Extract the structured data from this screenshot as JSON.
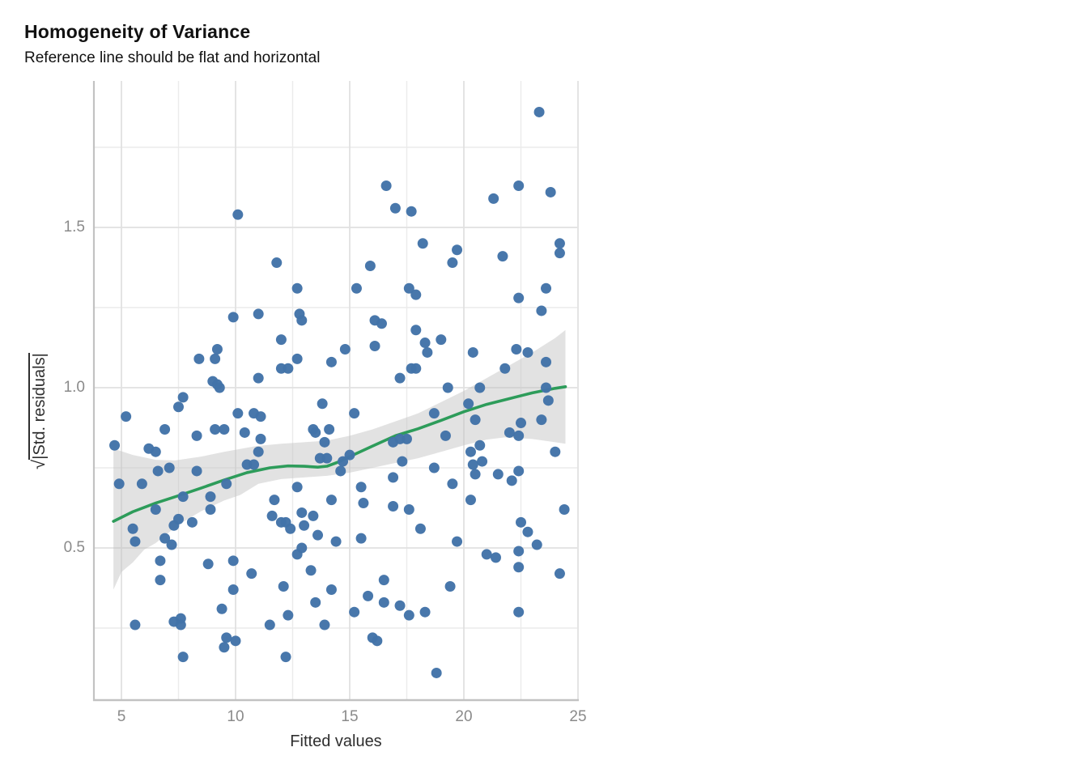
{
  "header": {
    "title": "Homogeneity of Variance",
    "subtitle": "Reference line should be flat and horizontal"
  },
  "axes": {
    "x": {
      "label": "Fitted values",
      "tick_labels": [
        "5",
        "10",
        "15",
        "20",
        "25"
      ]
    },
    "y": {
      "label": "√|Std. residuals|",
      "sqrt_symbol": "√",
      "label_text": "|Std. residuals|",
      "tick_labels": [
        "0.5",
        "1.0",
        "1.5"
      ]
    }
  },
  "colors": {
    "point": "#4273a8",
    "smooth_line": "#2d9c5a",
    "ribbon": "#bfbfbf",
    "grid_major": "#e0e0e0",
    "grid_minor": "#ebebeb",
    "axis_line": "#c2c2c2",
    "tick_text": "#8a8a8a",
    "axis_title_text": "#2f2f2f",
    "background": "#ffffff"
  },
  "chart_data": {
    "type": "scatter",
    "title": "Homogeneity of Variance",
    "subtitle": "Reference line should be flat and horizontal",
    "xlabel": "Fitted values",
    "ylabel": "sqrt(|Std. residuals|)",
    "xlim": [
      3.8,
      25.0
    ],
    "ylim": [
      0.02,
      1.96
    ],
    "x_ticks": [
      5,
      10,
      15,
      20,
      25
    ],
    "x_minor_ticks": [
      7.5,
      12.5,
      17.5,
      22.5
    ],
    "y_ticks": [
      0.5,
      1.0,
      1.5
    ],
    "y_minor_ticks": [
      0.25,
      0.75,
      1.25,
      1.75
    ],
    "grid": "on",
    "legend": "none",
    "points": [
      [
        10.1,
        1.54
      ],
      [
        16.6,
        1.63
      ],
      [
        17.0,
        1.56
      ],
      [
        17.7,
        1.55
      ],
      [
        11.8,
        1.39
      ],
      [
        15.9,
        1.38
      ],
      [
        12.7,
        1.31
      ],
      [
        15.3,
        1.31
      ],
      [
        17.6,
        1.31
      ],
      [
        17.9,
        1.29
      ],
      [
        23.3,
        1.86
      ],
      [
        22.4,
        1.63
      ],
      [
        21.3,
        1.59
      ],
      [
        23.8,
        1.61
      ],
      [
        18.2,
        1.45
      ],
      [
        19.7,
        1.43
      ],
      [
        19.5,
        1.39
      ],
      [
        21.7,
        1.41
      ],
      [
        24.2,
        1.45
      ],
      [
        24.2,
        1.42
      ],
      [
        23.6,
        1.31
      ],
      [
        9.9,
        1.22
      ],
      [
        11.0,
        1.23
      ],
      [
        9.2,
        1.12
      ],
      [
        8.4,
        1.09
      ],
      [
        9.1,
        1.09
      ],
      [
        9.0,
        1.02
      ],
      [
        9.2,
        1.01
      ],
      [
        9.3,
        1.0
      ],
      [
        11.0,
        1.03
      ],
      [
        7.7,
        0.97
      ],
      [
        7.5,
        0.94
      ],
      [
        5.2,
        0.91
      ],
      [
        10.1,
        0.92
      ],
      [
        10.8,
        0.92
      ],
      [
        6.9,
        0.87
      ],
      [
        9.1,
        0.87
      ],
      [
        9.5,
        0.87
      ],
      [
        10.4,
        0.86
      ],
      [
        8.3,
        0.85
      ],
      [
        4.7,
        0.82
      ],
      [
        6.2,
        0.81
      ],
      [
        6.5,
        0.8
      ],
      [
        11.0,
        0.8
      ],
      [
        6.6,
        0.74
      ],
      [
        7.1,
        0.75
      ],
      [
        8.3,
        0.74
      ],
      [
        10.5,
        0.76
      ],
      [
        10.8,
        0.76
      ],
      [
        4.9,
        0.7
      ],
      [
        5.9,
        0.7
      ],
      [
        9.6,
        0.7
      ],
      [
        12.8,
        1.23
      ],
      [
        12.9,
        1.21
      ],
      [
        16.1,
        1.21
      ],
      [
        16.4,
        1.2
      ],
      [
        17.9,
        1.18
      ],
      [
        12.0,
        1.15
      ],
      [
        14.8,
        1.12
      ],
      [
        16.1,
        1.13
      ],
      [
        18.3,
        1.14
      ],
      [
        12.7,
        1.09
      ],
      [
        14.2,
        1.08
      ],
      [
        12.0,
        1.06
      ],
      [
        12.3,
        1.06
      ],
      [
        17.2,
        1.03
      ],
      [
        17.7,
        1.06
      ],
      [
        17.9,
        1.06
      ],
      [
        13.8,
        0.95
      ],
      [
        11.1,
        0.91
      ],
      [
        15.2,
        0.92
      ],
      [
        13.4,
        0.87
      ],
      [
        13.5,
        0.86
      ],
      [
        14.1,
        0.87
      ],
      [
        11.1,
        0.84
      ],
      [
        13.9,
        0.83
      ],
      [
        16.9,
        0.83
      ],
      [
        17.2,
        0.84
      ],
      [
        17.5,
        0.84
      ],
      [
        13.7,
        0.78
      ],
      [
        14.0,
        0.78
      ],
      [
        14.7,
        0.77
      ],
      [
        15.0,
        0.79
      ],
      [
        17.3,
        0.77
      ],
      [
        14.6,
        0.74
      ],
      [
        16.9,
        0.72
      ],
      [
        12.7,
        0.69
      ],
      [
        15.5,
        0.69
      ],
      [
        22.4,
        1.28
      ],
      [
        23.4,
        1.24
      ],
      [
        19.0,
        1.15
      ],
      [
        18.4,
        1.11
      ],
      [
        20.4,
        1.11
      ],
      [
        22.3,
        1.12
      ],
      [
        22.8,
        1.11
      ],
      [
        21.8,
        1.06
      ],
      [
        23.6,
        1.08
      ],
      [
        19.3,
        1.0
      ],
      [
        20.7,
        1.0
      ],
      [
        23.6,
        1.0
      ],
      [
        20.2,
        0.95
      ],
      [
        23.7,
        0.96
      ],
      [
        18.7,
        0.92
      ],
      [
        20.5,
        0.9
      ],
      [
        22.5,
        0.89
      ],
      [
        23.4,
        0.9
      ],
      [
        22.0,
        0.86
      ],
      [
        22.4,
        0.85
      ],
      [
        19.2,
        0.85
      ],
      [
        20.7,
        0.82
      ],
      [
        20.3,
        0.8
      ],
      [
        24.0,
        0.8
      ],
      [
        20.4,
        0.76
      ],
      [
        20.8,
        0.77
      ],
      [
        18.7,
        0.75
      ],
      [
        20.5,
        0.73
      ],
      [
        21.5,
        0.73
      ],
      [
        22.4,
        0.74
      ],
      [
        22.1,
        0.71
      ],
      [
        19.5,
        0.7
      ],
      [
        5.5,
        0.56
      ],
      [
        5.6,
        0.52
      ],
      [
        6.5,
        0.62
      ],
      [
        7.7,
        0.66
      ],
      [
        8.9,
        0.66
      ],
      [
        8.9,
        0.62
      ],
      [
        7.5,
        0.59
      ],
      [
        7.3,
        0.57
      ],
      [
        8.1,
        0.58
      ],
      [
        6.9,
        0.53
      ],
      [
        7.2,
        0.51
      ],
      [
        6.7,
        0.46
      ],
      [
        8.8,
        0.45
      ],
      [
        9.9,
        0.46
      ],
      [
        10.7,
        0.42
      ],
      [
        6.7,
        0.4
      ],
      [
        9.9,
        0.37
      ],
      [
        9.4,
        0.31
      ],
      [
        5.6,
        0.26
      ],
      [
        7.3,
        0.27
      ],
      [
        7.6,
        0.28
      ],
      [
        7.6,
        0.26
      ],
      [
        9.6,
        0.22
      ],
      [
        9.5,
        0.19
      ],
      [
        10.0,
        0.21
      ],
      [
        7.7,
        0.16
      ],
      [
        11.7,
        0.65
      ],
      [
        14.2,
        0.65
      ],
      [
        15.6,
        0.64
      ],
      [
        16.9,
        0.63
      ],
      [
        17.6,
        0.62
      ],
      [
        11.6,
        0.6
      ],
      [
        12.0,
        0.58
      ],
      [
        12.2,
        0.58
      ],
      [
        12.4,
        0.56
      ],
      [
        12.9,
        0.61
      ],
      [
        13.4,
        0.6
      ],
      [
        13.0,
        0.57
      ],
      [
        13.6,
        0.54
      ],
      [
        14.4,
        0.52
      ],
      [
        15.5,
        0.53
      ],
      [
        18.1,
        0.56
      ],
      [
        12.9,
        0.5
      ],
      [
        12.7,
        0.48
      ],
      [
        13.3,
        0.43
      ],
      [
        12.1,
        0.38
      ],
      [
        14.2,
        0.37
      ],
      [
        13.5,
        0.33
      ],
      [
        16.5,
        0.4
      ],
      [
        15.8,
        0.35
      ],
      [
        16.5,
        0.33
      ],
      [
        17.2,
        0.32
      ],
      [
        17.6,
        0.29
      ],
      [
        15.2,
        0.3
      ],
      [
        12.3,
        0.29
      ],
      [
        11.5,
        0.26
      ],
      [
        13.9,
        0.26
      ],
      [
        16.0,
        0.22
      ],
      [
        16.2,
        0.21
      ],
      [
        12.2,
        0.16
      ],
      [
        20.3,
        0.65
      ],
      [
        24.4,
        0.62
      ],
      [
        22.5,
        0.58
      ],
      [
        22.8,
        0.55
      ],
      [
        19.7,
        0.52
      ],
      [
        23.2,
        0.51
      ],
      [
        22.4,
        0.49
      ],
      [
        21.0,
        0.48
      ],
      [
        21.4,
        0.47
      ],
      [
        22.4,
        0.44
      ],
      [
        24.2,
        0.42
      ],
      [
        19.4,
        0.38
      ],
      [
        18.3,
        0.3
      ],
      [
        22.4,
        0.3
      ],
      [
        18.8,
        0.11
      ]
    ],
    "smooth_line": [
      [
        4.65,
        0.583
      ],
      [
        5.5,
        0.613
      ],
      [
        6.5,
        0.64
      ],
      [
        7.5,
        0.663
      ],
      [
        8.5,
        0.687
      ],
      [
        9.5,
        0.712
      ],
      [
        10.5,
        0.735
      ],
      [
        11.5,
        0.75
      ],
      [
        12.3,
        0.756
      ],
      [
        13.0,
        0.755
      ],
      [
        13.6,
        0.752
      ],
      [
        14.0,
        0.755
      ],
      [
        14.5,
        0.768
      ],
      [
        15.0,
        0.785
      ],
      [
        16.0,
        0.818
      ],
      [
        17.0,
        0.85
      ],
      [
        18.0,
        0.872
      ],
      [
        19.0,
        0.898
      ],
      [
        20.0,
        0.925
      ],
      [
        21.0,
        0.948
      ],
      [
        22.0,
        0.966
      ],
      [
        23.0,
        0.984
      ],
      [
        24.0,
        0.998
      ],
      [
        24.45,
        1.003
      ]
    ],
    "ribbon_upper": [
      [
        4.65,
        0.81
      ],
      [
        5.5,
        0.79
      ],
      [
        6.5,
        0.775
      ],
      [
        7.35,
        0.773
      ],
      [
        8.5,
        0.785
      ],
      [
        9.5,
        0.8
      ],
      [
        10.9,
        0.818
      ],
      [
        12.0,
        0.825
      ],
      [
        13.0,
        0.83
      ],
      [
        14.0,
        0.835
      ],
      [
        15.0,
        0.85
      ],
      [
        16.0,
        0.87
      ],
      [
        17.0,
        0.895
      ],
      [
        18.0,
        0.92
      ],
      [
        19.0,
        0.955
      ],
      [
        20.0,
        0.99
      ],
      [
        21.0,
        1.03
      ],
      [
        22.0,
        1.07
      ],
      [
        23.0,
        1.11
      ],
      [
        24.0,
        1.155
      ],
      [
        24.45,
        1.18
      ]
    ],
    "ribbon_lower": [
      [
        4.65,
        0.37
      ],
      [
        5.0,
        0.425
      ],
      [
        5.5,
        0.455
      ],
      [
        6.0,
        0.495
      ],
      [
        6.5,
        0.515
      ],
      [
        7.5,
        0.573
      ],
      [
        8.5,
        0.615
      ],
      [
        9.5,
        0.648
      ],
      [
        10.2,
        0.665
      ],
      [
        11.0,
        0.7
      ],
      [
        12.0,
        0.715
      ],
      [
        13.0,
        0.72
      ],
      [
        14.0,
        0.725
      ],
      [
        15.0,
        0.735
      ],
      [
        16.0,
        0.75
      ],
      [
        17.0,
        0.765
      ],
      [
        18.0,
        0.78
      ],
      [
        19.0,
        0.8
      ],
      [
        20.0,
        0.82
      ],
      [
        21.0,
        0.838
      ],
      [
        21.8,
        0.845
      ],
      [
        23.0,
        0.84
      ],
      [
        24.0,
        0.83
      ],
      [
        24.45,
        0.825
      ]
    ]
  }
}
